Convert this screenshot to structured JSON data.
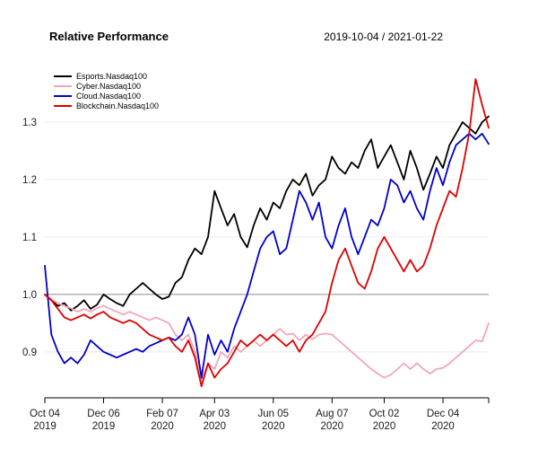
{
  "header": {
    "title": "Relative Performance",
    "date_range": "2019-10-04 / 2021-01-22"
  },
  "chart_data": {
    "type": "line",
    "title": "Relative Performance",
    "date_range_label": "2019-10-04 / 2021-01-22",
    "x_start": "2019-10-04",
    "x_end": "2021-01-22",
    "x_frequency": "weekly",
    "grid": "horizontal",
    "legend_position": "top-left",
    "baseline": 1.0,
    "ylim": [
      0.82,
      1.4
    ],
    "y_ticks": [
      0.9,
      1.0,
      1.1,
      1.2,
      1.3
    ],
    "x_tick_indices": [
      0,
      9,
      18,
      26,
      35,
      44,
      52,
      61
    ],
    "x_tick_labels": [
      [
        "Oct 04",
        "2019"
      ],
      [
        "Dec 06",
        "2019"
      ],
      [
        "Feb 07",
        "2020"
      ],
      [
        "Apr 03",
        "2020"
      ],
      [
        "Jun 05",
        "2020"
      ],
      [
        "Aug 07",
        "2020"
      ],
      [
        "Oct 02",
        "2020"
      ],
      [
        "Dec 04",
        "2020"
      ]
    ],
    "series": [
      {
        "name": "Esports.Nasdaq100",
        "color": "#000000",
        "values": [
          1.0,
          0.99,
          0.98,
          0.985,
          0.972,
          0.98,
          0.99,
          0.975,
          0.982,
          1.0,
          0.992,
          0.985,
          0.98,
          1.0,
          1.01,
          1.02,
          1.01,
          1.0,
          0.992,
          0.996,
          1.02,
          1.03,
          1.06,
          1.08,
          1.07,
          1.1,
          1.18,
          1.15,
          1.12,
          1.14,
          1.1,
          1.082,
          1.12,
          1.15,
          1.13,
          1.16,
          1.15,
          1.18,
          1.2,
          1.19,
          1.21,
          1.172,
          1.19,
          1.2,
          1.24,
          1.22,
          1.21,
          1.23,
          1.22,
          1.25,
          1.27,
          1.22,
          1.24,
          1.26,
          1.23,
          1.2,
          1.25,
          1.22,
          1.182,
          1.21,
          1.24,
          1.22,
          1.26,
          1.28,
          1.3,
          1.29,
          1.28,
          1.3,
          1.31
        ]
      },
      {
        "name": "Cyber.Nasdaq100",
        "color": "#F4A6B8",
        "values": [
          1.0,
          0.992,
          0.985,
          0.98,
          0.976,
          0.97,
          0.975,
          0.97,
          0.976,
          0.98,
          0.975,
          0.97,
          0.965,
          0.97,
          0.965,
          0.96,
          0.955,
          0.96,
          0.955,
          0.95,
          0.93,
          0.92,
          0.93,
          0.9,
          0.85,
          0.88,
          0.87,
          0.9,
          0.89,
          0.91,
          0.9,
          0.91,
          0.92,
          0.91,
          0.92,
          0.93,
          0.94,
          0.93,
          0.932,
          0.92,
          0.93,
          0.922,
          0.93,
          0.932,
          0.93,
          0.92,
          0.91,
          0.9,
          0.89,
          0.88,
          0.87,
          0.862,
          0.855,
          0.86,
          0.87,
          0.88,
          0.87,
          0.88,
          0.87,
          0.862,
          0.87,
          0.872,
          0.88,
          0.89,
          0.9,
          0.91,
          0.92,
          0.918,
          0.95
        ]
      },
      {
        "name": "Cloud.Nasdaq100",
        "color": "#0000CC",
        "values": [
          1.05,
          0.93,
          0.9,
          0.88,
          0.89,
          0.88,
          0.895,
          0.92,
          0.91,
          0.9,
          0.895,
          0.89,
          0.895,
          0.9,
          0.905,
          0.9,
          0.91,
          0.915,
          0.92,
          0.925,
          0.92,
          0.93,
          0.96,
          0.93,
          0.855,
          0.93,
          0.895,
          0.92,
          0.9,
          0.94,
          0.97,
          1.0,
          1.04,
          1.08,
          1.1,
          1.11,
          1.07,
          1.08,
          1.13,
          1.18,
          1.16,
          1.13,
          1.16,
          1.1,
          1.08,
          1.12,
          1.15,
          1.1,
          1.07,
          1.1,
          1.13,
          1.12,
          1.15,
          1.2,
          1.19,
          1.16,
          1.18,
          1.15,
          1.13,
          1.18,
          1.22,
          1.19,
          1.23,
          1.26,
          1.27,
          1.28,
          1.27,
          1.28,
          1.262
        ]
      },
      {
        "name": "Blockchain.Nasdaq100",
        "color": "#DD0000",
        "values": [
          1.0,
          0.99,
          0.975,
          0.96,
          0.955,
          0.96,
          0.965,
          0.958,
          0.965,
          0.97,
          0.96,
          0.955,
          0.95,
          0.955,
          0.95,
          0.94,
          0.93,
          0.925,
          0.92,
          0.925,
          0.91,
          0.9,
          0.92,
          0.89,
          0.84,
          0.88,
          0.855,
          0.87,
          0.88,
          0.9,
          0.92,
          0.91,
          0.92,
          0.93,
          0.92,
          0.93,
          0.92,
          0.91,
          0.92,
          0.9,
          0.92,
          0.93,
          0.95,
          0.97,
          1.02,
          1.06,
          1.08,
          1.05,
          1.02,
          1.01,
          1.04,
          1.08,
          1.1,
          1.08,
          1.06,
          1.04,
          1.06,
          1.04,
          1.05,
          1.08,
          1.12,
          1.15,
          1.18,
          1.17,
          1.22,
          1.28,
          1.375,
          1.33,
          1.29
        ]
      }
    ]
  }
}
